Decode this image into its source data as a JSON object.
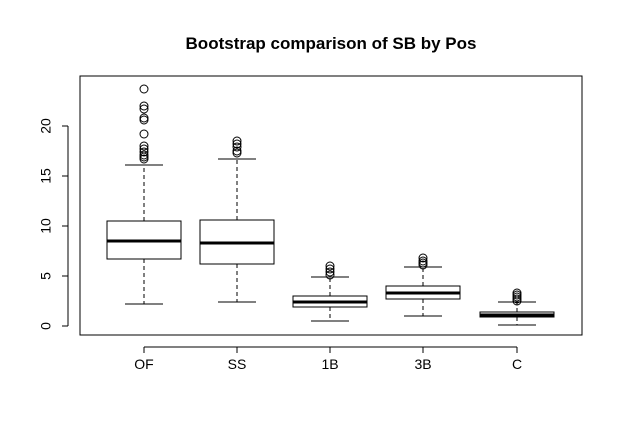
{
  "chart_data": {
    "type": "box",
    "title": "Bootstrap comparison of SB by Pos",
    "xlabel": "",
    "ylabel": "",
    "categories": [
      "OF",
      "SS",
      "1B",
      "3B",
      "C"
    ],
    "y_ticks": [
      0,
      5,
      10,
      15,
      20
    ],
    "ylim": [
      -0.5,
      24.9
    ],
    "grid": false,
    "legend": "none",
    "boxes": [
      {
        "category": "OF",
        "whisker_low": 2.2,
        "q1": 6.7,
        "median": 8.5,
        "q3": 10.5,
        "whisker_high": 16.1,
        "outliers": [
          16.7,
          16.9,
          17.1,
          17.4,
          17.7,
          18.0,
          19.2,
          20.6,
          20.8,
          21.7,
          22.0,
          23.7
        ]
      },
      {
        "category": "SS",
        "whisker_low": 2.4,
        "q1": 6.2,
        "median": 8.3,
        "q3": 10.6,
        "whisker_high": 16.7,
        "outliers": [
          17.3,
          17.5,
          17.9,
          18.2,
          18.5
        ]
      },
      {
        "category": "1B",
        "whisker_low": 0.5,
        "q1": 1.9,
        "median": 2.4,
        "q3": 3.0,
        "whisker_high": 4.9,
        "outliers": [
          5.1,
          5.4,
          5.7,
          6.0
        ]
      },
      {
        "category": "3B",
        "whisker_low": 1.0,
        "q1": 2.7,
        "median": 3.3,
        "q3": 4.0,
        "whisker_high": 5.9,
        "outliers": [
          6.1,
          6.3,
          6.5,
          6.8
        ]
      },
      {
        "category": "C",
        "whisker_low": 0.1,
        "q1": 0.9,
        "median": 1.1,
        "q3": 1.4,
        "whisker_high": 2.4,
        "outliers": [
          2.5,
          2.7,
          2.9,
          3.1,
          3.3
        ]
      }
    ],
    "colors": {
      "box_fill": "#ffffff",
      "stroke": "#000000",
      "background": "#ffffff"
    }
  }
}
